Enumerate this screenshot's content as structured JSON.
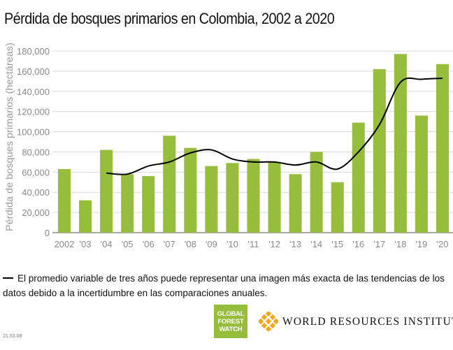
{
  "title": "Pérdida de bosques primarios en Colombia, 2002 a 2020",
  "chart_data": {
    "type": "bar",
    "title": "Pérdida de bosques primarios en Colombia, 2002 a 2020",
    "xlabel": "",
    "ylabel": "Pérdida de bosques primarios (hectáreas)",
    "categories": [
      "2002",
      "'03",
      "'04",
      "'05",
      "'06",
      "'07",
      "'08",
      "'09",
      "'10",
      "'11",
      "'12",
      "'13",
      "'14",
      "'15",
      "'16",
      "'17",
      "'18",
      "'19",
      "'20"
    ],
    "ylim": [
      0,
      180000
    ],
    "yticks": [
      "0",
      "20,000",
      "40,000",
      "60,000",
      "80,000",
      "100,000",
      "120,000",
      "140,000",
      "160,000",
      "180,000"
    ],
    "grid": true,
    "bar_color": "#97bd3d",
    "line_color": "#000000",
    "series": [
      {
        "type": "bar",
        "values": [
          63000,
          32000,
          82000,
          58000,
          56000,
          96000,
          84000,
          66000,
          69000,
          73000,
          70000,
          58000,
          80000,
          50000,
          109000,
          162000,
          177000,
          116000,
          167000
        ]
      },
      {
        "type": "line",
        "values": [
          null,
          null,
          59000,
          58000,
          66000,
          70000,
          79000,
          82000,
          73000,
          70000,
          70000,
          67000,
          70000,
          63000,
          80000,
          107000,
          149000,
          152000,
          153000
        ]
      }
    ]
  },
  "legend": {
    "text": "El promedio variable de tres años puede representar una imagen más exacta de las tendencias de los datos debido a la incertidumbre en las comparaciones anuales."
  },
  "logos": {
    "gfw_line1": "GLOBAL",
    "gfw_line2": "FOREST",
    "gfw_line3": "WATCH",
    "gfw_color": "#97bd3d",
    "wri_text": "WORLD RESOURCES INSTITUTE",
    "wri_color": "#f2a81d"
  },
  "date": "21.03.08"
}
